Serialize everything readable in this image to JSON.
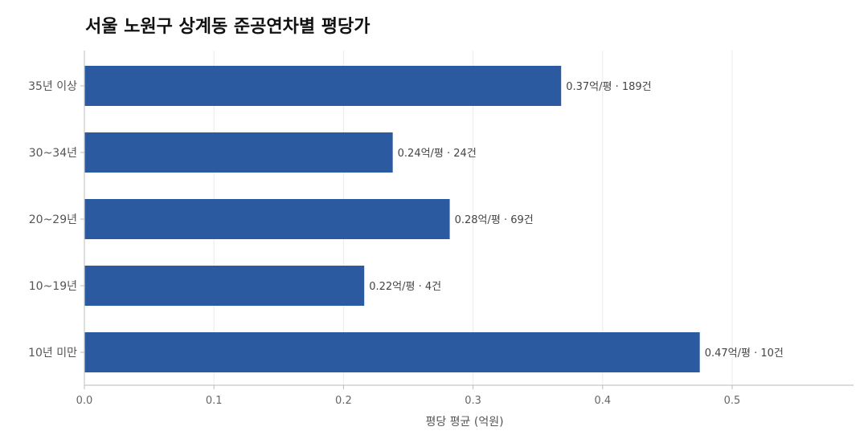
{
  "chart_data": {
    "type": "bar",
    "orientation": "horizontal",
    "title": "서울 노원구 상계동 준공연차별 평당가",
    "xlabel": "평당 평균 (억원)",
    "ylabel": "",
    "xlim": [
      0,
      0.5
    ],
    "xticks": [
      "0.0",
      "0.1",
      "0.2",
      "0.3",
      "0.4",
      "0.5"
    ],
    "grid": "vertical",
    "bar_color": "#2c5aa0",
    "categories": [
      "35년 이상",
      "30~34년",
      "20~29년",
      "10~19년",
      "10년 미만"
    ],
    "values": [
      0.368,
      0.238,
      0.282,
      0.216,
      0.475
    ],
    "labels": [
      "0.37억/평 · 189건",
      "0.24억/평 · 24건",
      "0.28억/평 · 69건",
      "0.22억/평 · 4건",
      "0.47억/평 · 10건"
    ]
  }
}
